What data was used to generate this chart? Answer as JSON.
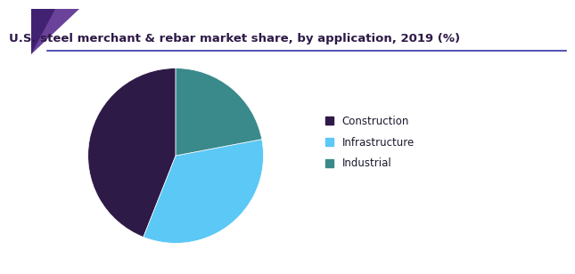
{
  "title": "U.S. steel merchant & rebar market share, by application, 2019 (%)",
  "title_fontsize": 9.5,
  "background_color": "#ffffff",
  "slices": [
    {
      "label": "Construction",
      "value": 44,
      "color": "#2e1a47"
    },
    {
      "label": "Infrastructure",
      "value": 34,
      "color": "#5bc8f5"
    },
    {
      "label": "Industrial",
      "value": 22,
      "color": "#3a8a8c"
    }
  ],
  "legend_text_color": "#1a1a2e",
  "title_color": "#2e1a47",
  "startangle": 90,
  "corner_colors": [
    "#6a3d9a",
    "#2d1b6e"
  ],
  "line_color": "#3333aa"
}
